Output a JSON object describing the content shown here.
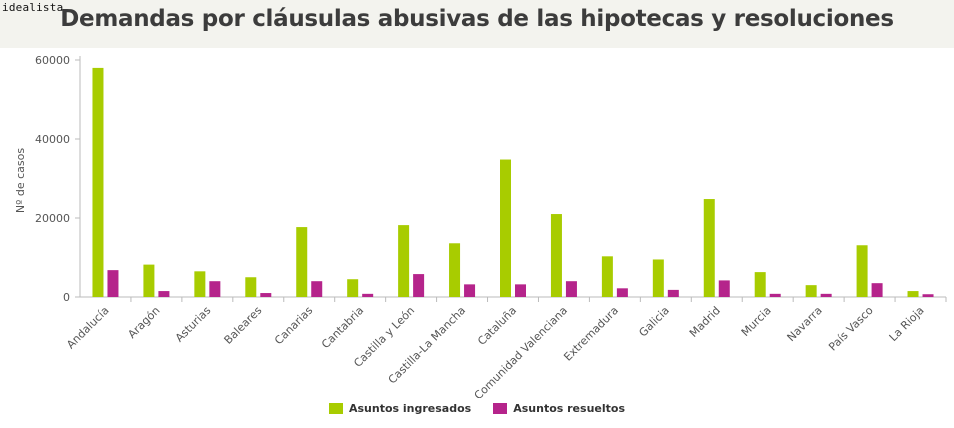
{
  "brand": "idealista",
  "chart_data": {
    "type": "bar",
    "title": "Demandas por cláusulas abusivas de las hipotecas y resoluciones",
    "xlabel": "",
    "ylabel": "Nº de casos",
    "ylim": [
      0,
      60000
    ],
    "yticks": [
      0,
      20000,
      40000,
      60000
    ],
    "categories": [
      "Andalucía",
      "Aragón",
      "Asturias",
      "Baleares",
      "Canarias",
      "Cantabria",
      "Castilla y León",
      "Castilla-La Mancha",
      "Cataluña",
      "Comunidad Valenciana",
      "Extremadura",
      "Galicia",
      "Madrid",
      "Murcia",
      "Navarra",
      "País Vasco",
      "La Rioja"
    ],
    "series": [
      {
        "name": "Asuntos ingresados",
        "color": "#a8cc00",
        "values": [
          58000,
          8200,
          6500,
          5000,
          17700,
          4500,
          18200,
          13600,
          34800,
          21000,
          10300,
          9500,
          24800,
          6300,
          3000,
          13100,
          1500
        ]
      },
      {
        "name": "Asuntos resueltos",
        "color": "#b5248b",
        "values": [
          6800,
          1500,
          4000,
          1000,
          4000,
          800,
          5800,
          3200,
          3200,
          4000,
          2200,
          1800,
          4200,
          800,
          800,
          3500,
          700
        ]
      }
    ],
    "grid": false,
    "legend_position": "bottom-center"
  }
}
